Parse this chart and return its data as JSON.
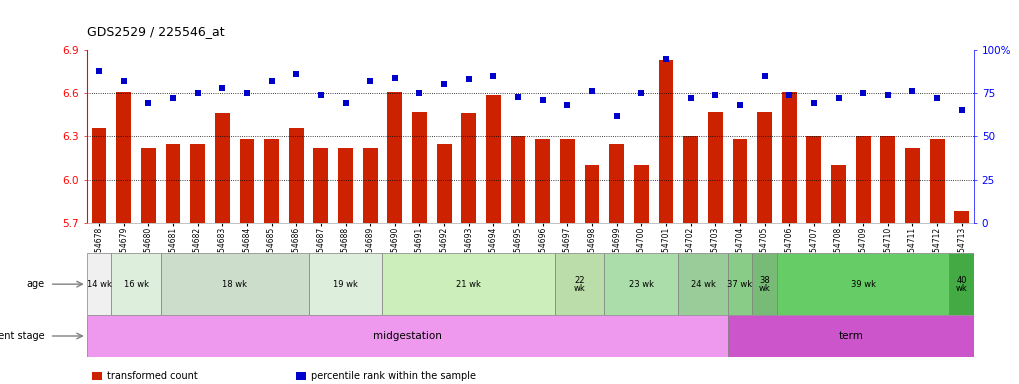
{
  "title": "GDS2529 / 225546_at",
  "samples": [
    "GSM154678",
    "GSM154679",
    "GSM154680",
    "GSM154681",
    "GSM154682",
    "GSM154683",
    "GSM154684",
    "GSM154685",
    "GSM154686",
    "GSM154687",
    "GSM154688",
    "GSM154689",
    "GSM154690",
    "GSM154691",
    "GSM154692",
    "GSM154693",
    "GSM154694",
    "GSM154695",
    "GSM154696",
    "GSM154697",
    "GSM154698",
    "GSM154699",
    "GSM154700",
    "GSM154701",
    "GSM154702",
    "GSM154703",
    "GSM154704",
    "GSM154705",
    "GSM154706",
    "GSM154707",
    "GSM154708",
    "GSM154709",
    "GSM154710",
    "GSM154711",
    "GSM154712",
    "GSM154713"
  ],
  "bar_values": [
    6.36,
    6.61,
    6.22,
    6.25,
    6.25,
    6.46,
    6.28,
    6.28,
    6.36,
    6.22,
    6.22,
    6.22,
    6.61,
    6.47,
    6.25,
    6.46,
    6.59,
    6.3,
    6.28,
    6.28,
    6.1,
    6.25,
    6.1,
    6.83,
    6.3,
    6.47,
    6.28,
    6.47,
    6.61,
    6.3,
    6.1,
    6.3,
    6.3,
    6.22,
    6.28,
    5.78
  ],
  "percentile_values": [
    88,
    82,
    69,
    72,
    75,
    78,
    75,
    82,
    86,
    74,
    69,
    82,
    84,
    75,
    80,
    83,
    85,
    73,
    71,
    68,
    76,
    62,
    75,
    95,
    72,
    74,
    68,
    85,
    74,
    69,
    72,
    75,
    74,
    76,
    72,
    65
  ],
  "ylim_left": [
    5.7,
    6.9
  ],
  "ylim_right": [
    0,
    100
  ],
  "yticks_left": [
    5.7,
    6.0,
    6.3,
    6.6,
    6.9
  ],
  "yticks_right": [
    0,
    25,
    50,
    75,
    100
  ],
  "ytick_labels_right": [
    "0",
    "25",
    "50",
    "75",
    "100%"
  ],
  "bar_color": "#cc2200",
  "dot_color": "#0000cc",
  "dotted_line_values": [
    6.0,
    6.3,
    6.6
  ],
  "age_groups": [
    {
      "label": "14 wk",
      "start": 0,
      "end": 1,
      "color": "#f0f0f0"
    },
    {
      "label": "16 wk",
      "start": 1,
      "end": 3,
      "color": "#ddeedd"
    },
    {
      "label": "18 wk",
      "start": 3,
      "end": 9,
      "color": "#ccddcc"
    },
    {
      "label": "19 wk",
      "start": 9,
      "end": 12,
      "color": "#ddeedd"
    },
    {
      "label": "21 wk",
      "start": 12,
      "end": 19,
      "color": "#cceebb"
    },
    {
      "label": "22\nwk",
      "start": 19,
      "end": 21,
      "color": "#bbddaa"
    },
    {
      "label": "23 wk",
      "start": 21,
      "end": 24,
      "color": "#aaddaa"
    },
    {
      "label": "24 wk",
      "start": 24,
      "end": 26,
      "color": "#99cc99"
    },
    {
      "label": "37 wk",
      "start": 26,
      "end": 27,
      "color": "#88cc88"
    },
    {
      "label": "38\nwk",
      "start": 27,
      "end": 28,
      "color": "#77bb77"
    },
    {
      "label": "39 wk",
      "start": 28,
      "end": 35,
      "color": "#66cc66"
    },
    {
      "label": "40\nwk",
      "start": 35,
      "end": 36,
      "color": "#44aa44"
    }
  ],
  "dev_stages": [
    {
      "label": "midgestation",
      "start": 0,
      "end": 26,
      "color": "#ee99ee"
    },
    {
      "label": "term",
      "start": 26,
      "end": 36,
      "color": "#cc55cc"
    }
  ],
  "legend_items": [
    {
      "label": "transformed count",
      "color": "#cc2200"
    },
    {
      "label": "percentile rank within the sample",
      "color": "#0000cc"
    }
  ],
  "background_color": "#ffffff"
}
